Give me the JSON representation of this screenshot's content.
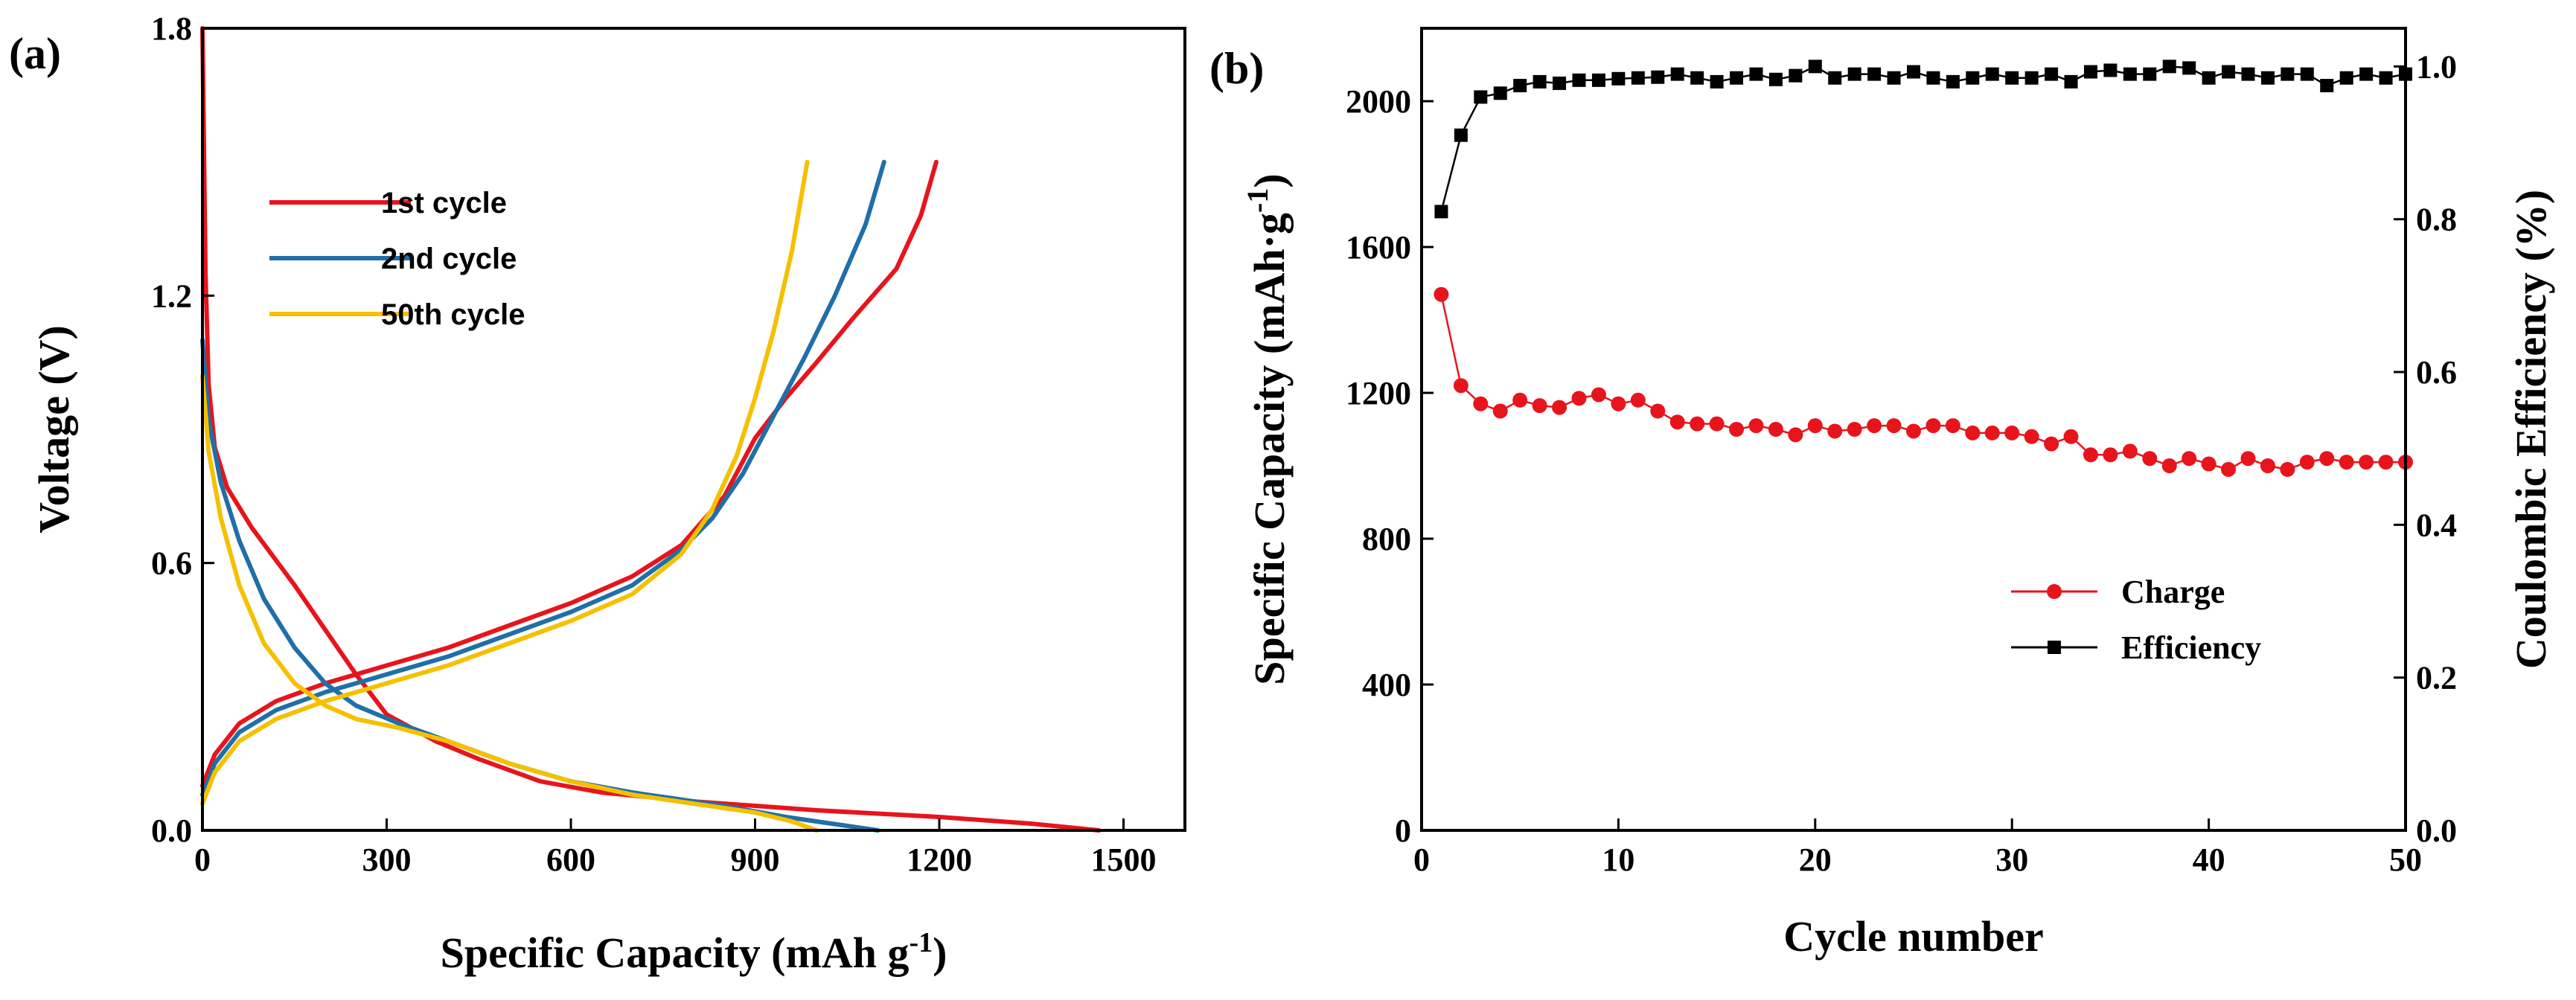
{
  "chart_data": [
    {
      "panel_label": "(a)",
      "type": "line",
      "xlabel_main": "Specific Capacity (mAh g",
      "xlabel_sup": "-1",
      "xlabel_end": ")",
      "ylabel": "Voltage (V)",
      "xlim": [
        0,
        1600
      ],
      "ylim": [
        0,
        1.8
      ],
      "xticks": [
        "0",
        "300",
        "600",
        "900",
        "1200",
        "1500"
      ],
      "xtick_values": [
        0,
        300,
        600,
        900,
        1200,
        1500
      ],
      "yticks": [
        "0.0",
        "0.6",
        "1.2",
        "1.8"
      ],
      "ytick_values": [
        0,
        0.6,
        1.2,
        1.8
      ],
      "legend_position": "upper-left",
      "series": [
        {
          "name": "1st cycle",
          "color": "#e8141c",
          "discharge": [
            [
              0,
              1.8
            ],
            [
              5,
              1.25
            ],
            [
              10,
              1.0
            ],
            [
              20,
              0.86
            ],
            [
              40,
              0.77
            ],
            [
              80,
              0.68
            ],
            [
              150,
              0.55
            ],
            [
              200,
              0.45
            ],
            [
              250,
              0.35
            ],
            [
              300,
              0.26
            ],
            [
              380,
              0.2
            ],
            [
              450,
              0.16
            ],
            [
              550,
              0.11
            ],
            [
              650,
              0.085
            ],
            [
              800,
              0.065
            ],
            [
              1000,
              0.045
            ],
            [
              1200,
              0.03
            ],
            [
              1350,
              0.015
            ],
            [
              1460,
              0.0
            ]
          ],
          "charge": [
            [
              0,
              0.1
            ],
            [
              20,
              0.17
            ],
            [
              60,
              0.24
            ],
            [
              120,
              0.29
            ],
            [
              200,
              0.33
            ],
            [
              300,
              0.37
            ],
            [
              400,
              0.41
            ],
            [
              500,
              0.46
            ],
            [
              600,
              0.51
            ],
            [
              700,
              0.57
            ],
            [
              780,
              0.64
            ],
            [
              850,
              0.75
            ],
            [
              900,
              0.88
            ],
            [
              950,
              0.97
            ],
            [
              1000,
              1.05
            ],
            [
              1060,
              1.15
            ],
            [
              1130,
              1.26
            ],
            [
              1170,
              1.38
            ],
            [
              1195,
              1.5
            ]
          ]
        },
        {
          "name": "2nd cycle",
          "color": "#1f6fa8",
          "discharge": [
            [
              0,
              1.1
            ],
            [
              10,
              0.92
            ],
            [
              30,
              0.78
            ],
            [
              60,
              0.65
            ],
            [
              100,
              0.52
            ],
            [
              150,
              0.41
            ],
            [
              200,
              0.33
            ],
            [
              250,
              0.28
            ],
            [
              320,
              0.24
            ],
            [
              400,
              0.2
            ],
            [
              500,
              0.15
            ],
            [
              600,
              0.11
            ],
            [
              700,
              0.085
            ],
            [
              850,
              0.055
            ],
            [
              950,
              0.03
            ],
            [
              1050,
              0.01
            ],
            [
              1100,
              0.0
            ]
          ],
          "charge": [
            [
              0,
              0.08
            ],
            [
              20,
              0.15
            ],
            [
              60,
              0.22
            ],
            [
              120,
              0.27
            ],
            [
              200,
              0.31
            ],
            [
              300,
              0.35
            ],
            [
              400,
              0.39
            ],
            [
              500,
              0.44
            ],
            [
              600,
              0.49
            ],
            [
              700,
              0.55
            ],
            [
              780,
              0.63
            ],
            [
              830,
              0.7
            ],
            [
              880,
              0.8
            ],
            [
              930,
              0.93
            ],
            [
              980,
              1.06
            ],
            [
              1030,
              1.2
            ],
            [
              1080,
              1.36
            ],
            [
              1110,
              1.5
            ]
          ]
        },
        {
          "name": "50th cycle",
          "color": "#f5c000",
          "discharge": [
            [
              0,
              1.02
            ],
            [
              10,
              0.85
            ],
            [
              30,
              0.7
            ],
            [
              60,
              0.55
            ],
            [
              100,
              0.42
            ],
            [
              150,
              0.33
            ],
            [
              200,
              0.28
            ],
            [
              250,
              0.25
            ],
            [
              320,
              0.23
            ],
            [
              400,
              0.2
            ],
            [
              500,
              0.15
            ],
            [
              600,
              0.11
            ],
            [
              700,
              0.08
            ],
            [
              800,
              0.06
            ],
            [
              900,
              0.04
            ],
            [
              960,
              0.02
            ],
            [
              1000,
              0.0
            ]
          ],
          "charge": [
            [
              0,
              0.06
            ],
            [
              20,
              0.13
            ],
            [
              60,
              0.2
            ],
            [
              120,
              0.25
            ],
            [
              200,
              0.29
            ],
            [
              300,
              0.33
            ],
            [
              400,
              0.37
            ],
            [
              500,
              0.42
            ],
            [
              600,
              0.47
            ],
            [
              700,
              0.53
            ],
            [
              780,
              0.62
            ],
            [
              830,
              0.72
            ],
            [
              870,
              0.84
            ],
            [
              900,
              0.97
            ],
            [
              930,
              1.12
            ],
            [
              960,
              1.3
            ],
            [
              985,
              1.5
            ]
          ]
        }
      ]
    },
    {
      "panel_label": "(b)",
      "type": "scatter-line",
      "xlabel": "Cycle number",
      "ylabel_left": "Specific Capacity (mAh·g",
      "ylabel_left_sup": "-1",
      "ylabel_left_end": ")",
      "ylabel_right": "Coulombic Efficiency (%)",
      "xlim": [
        0,
        50
      ],
      "ylim_left": [
        0,
        2200
      ],
      "ylim_right": [
        0,
        1.05
      ],
      "xticks": [
        "0",
        "10",
        "20",
        "30",
        "40",
        "50"
      ],
      "xtick_values": [
        0,
        10,
        20,
        30,
        40,
        50
      ],
      "yticks_left": [
        "0",
        "400",
        "800",
        "1200",
        "1600",
        "2000"
      ],
      "ytick_left_values": [
        0,
        400,
        800,
        1200,
        1600,
        2000
      ],
      "yticks_right": [
        "0.0",
        "0.2",
        "0.4",
        "0.6",
        "0.8",
        "1.0"
      ],
      "ytick_right_values": [
        0,
        0.2,
        0.4,
        0.6,
        0.8,
        1.0
      ],
      "legend_position": "center-right",
      "series": [
        {
          "name": "Charge",
          "axis": "left",
          "color": "#e8141c",
          "marker": "circle",
          "x": [
            1,
            2,
            3,
            4,
            5,
            6,
            7,
            8,
            9,
            10,
            11,
            12,
            13,
            14,
            15,
            16,
            17,
            18,
            19,
            20,
            21,
            22,
            23,
            24,
            25,
            26,
            27,
            28,
            29,
            30,
            31,
            32,
            33,
            34,
            35,
            36,
            37,
            38,
            39,
            40,
            41,
            42,
            43,
            44,
            45,
            46,
            47,
            48,
            49,
            50
          ],
          "values": [
            1470,
            1220,
            1170,
            1150,
            1180,
            1165,
            1160,
            1185,
            1195,
            1170,
            1180,
            1150,
            1120,
            1115,
            1115,
            1100,
            1110,
            1100,
            1085,
            1110,
            1095,
            1100,
            1110,
            1110,
            1095,
            1110,
            1110,
            1090,
            1090,
            1090,
            1080,
            1060,
            1080,
            1030,
            1030,
            1040,
            1020,
            1000,
            1020,
            1005,
            990,
            1020,
            1000,
            990,
            1010,
            1020,
            1010,
            1010,
            1010,
            1010
          ]
        },
        {
          "name": "Efficiency",
          "axis": "right",
          "color": "#000000",
          "marker": "square",
          "x": [
            1,
            2,
            3,
            4,
            5,
            6,
            7,
            8,
            9,
            10,
            11,
            12,
            13,
            14,
            15,
            16,
            17,
            18,
            19,
            20,
            21,
            22,
            23,
            24,
            25,
            26,
            27,
            28,
            29,
            30,
            31,
            32,
            33,
            34,
            35,
            36,
            37,
            38,
            39,
            40,
            41,
            42,
            43,
            44,
            45,
            46,
            47,
            48,
            49,
            50
          ],
          "values": [
            0.81,
            0.91,
            0.96,
            0.965,
            0.975,
            0.98,
            0.978,
            0.982,
            0.982,
            0.984,
            0.985,
            0.986,
            0.99,
            0.985,
            0.98,
            0.985,
            0.99,
            0.983,
            0.988,
            1.0,
            0.985,
            0.99,
            0.99,
            0.985,
            0.993,
            0.985,
            0.98,
            0.985,
            0.99,
            0.985,
            0.985,
            0.99,
            0.98,
            0.993,
            0.995,
            0.99,
            0.99,
            1.0,
            0.998,
            0.985,
            0.993,
            0.99,
            0.985,
            0.99,
            0.99,
            0.975,
            0.985,
            0.99,
            0.985,
            0.99
          ]
        }
      ]
    }
  ]
}
